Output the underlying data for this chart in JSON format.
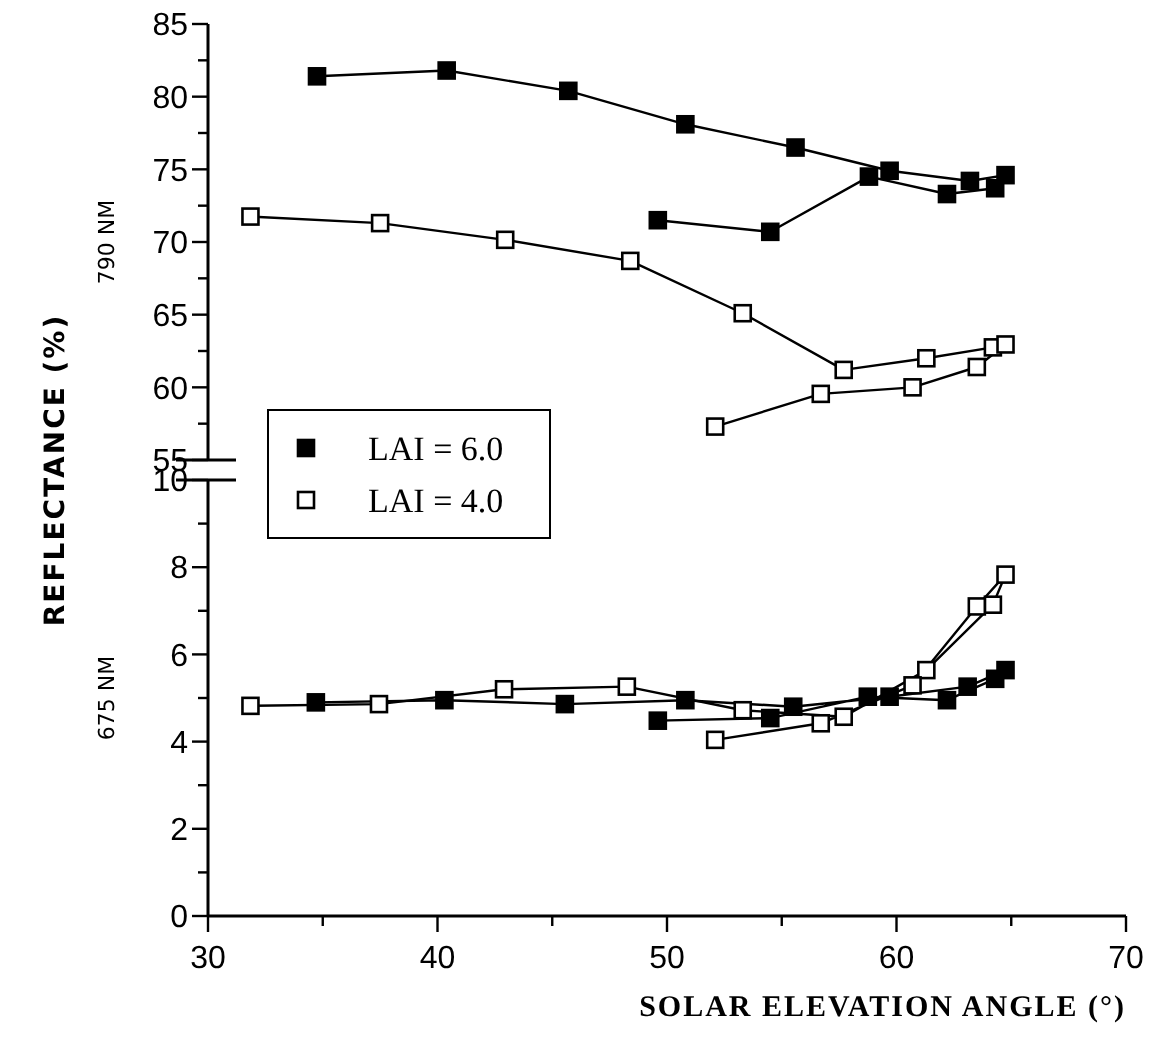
{
  "chart_data": [
    {
      "type": "line",
      "ylabel": "790 NM",
      "annotations": [
        "REFLECTANCE (%)"
      ],
      "xlim": [
        30,
        70
      ],
      "ylim": [
        55,
        85
      ],
      "yticks": [
        55,
        {
          "value": 57.5,
          "label": null
        },
        60,
        {
          "value": 62.5,
          "label": null
        },
        65,
        {
          "value": 67.5,
          "label": null
        },
        70,
        {
          "value": 72.5,
          "label": null
        },
        75,
        {
          "value": 77.5,
          "label": null
        },
        80,
        {
          "value": 82.5,
          "label": null
        },
        85
      ],
      "tick_labels": "y",
      "marker": "square",
      "grid": false,
      "legend": false,
      "series": [
        {
          "color": "#000000",
          "x": [
            34.75,
            40.4,
            45.7,
            50.8,
            55.6,
            59.7,
            63.2,
            64.75,
            64.3,
            62.2,
            58.8,
            54.5,
            49.6
          ],
          "values": [
            81.4,
            81.8,
            80.4,
            78.1,
            76.5,
            74.9,
            74.2,
            74.6,
            73.7,
            73.3,
            74.5,
            70.7,
            71.5
          ]
        },
        {
          "color": "#ffffff",
          "x": [
            31.85,
            37.5,
            42.95,
            48.4,
            53.3,
            57.7,
            61.3,
            64.2,
            64.75,
            63.5,
            60.7,
            56.7,
            52.1
          ],
          "values": [
            71.75,
            71.3,
            70.15,
            68.7,
            65.1,
            61.2,
            62.0,
            62.75,
            62.95,
            61.4,
            60.0,
            59.55,
            57.3
          ]
        }
      ]
    },
    {
      "type": "line",
      "ylabel": "675 NM",
      "xlabel": "SOLAR ELEVATION ANGLE (°)",
      "xlim": [
        30,
        70
      ],
      "xticks": [
        30,
        {
          "value": 35,
          "label": null
        },
        40,
        {
          "value": 45,
          "label": null
        },
        50,
        {
          "value": 55,
          "label": null
        },
        60,
        {
          "value": 65,
          "label": null
        },
        70
      ],
      "ylim": [
        0,
        10
      ],
      "yticks": [
        0,
        {
          "value": 1,
          "label": null
        },
        2,
        {
          "value": 3,
          "label": null
        },
        4,
        {
          "value": 5,
          "label": null
        },
        6,
        {
          "value": 7,
          "label": null
        },
        8,
        {
          "value": 9,
          "label": null
        },
        10
      ],
      "marker": "square",
      "grid": false,
      "legend": "top left",
      "series": [
        {
          "name": "LAI = 6.0",
          "color": "#000000",
          "x": [
            34.7,
            40.3,
            45.55,
            50.8,
            55.5,
            59.7,
            63.1,
            64.75,
            64.3,
            62.2,
            58.75,
            54.5,
            49.6
          ],
          "values": [
            4.9,
            4.95,
            4.86,
            4.95,
            4.8,
            5.03,
            5.26,
            5.64,
            5.44,
            4.95,
            5.03,
            4.54,
            4.48
          ]
        },
        {
          "name": "LAI = 4.0",
          "color": "#ffffff",
          "x": [
            31.85,
            37.45,
            42.9,
            48.25,
            53.3,
            57.7,
            61.3,
            64.2,
            64.75,
            63.5,
            60.7,
            56.7,
            52.1
          ],
          "values": [
            4.82,
            4.86,
            5.2,
            5.26,
            4.72,
            4.57,
            5.64,
            7.14,
            7.83,
            7.1,
            5.29,
            4.42,
            4.04
          ]
        }
      ]
    }
  ]
}
